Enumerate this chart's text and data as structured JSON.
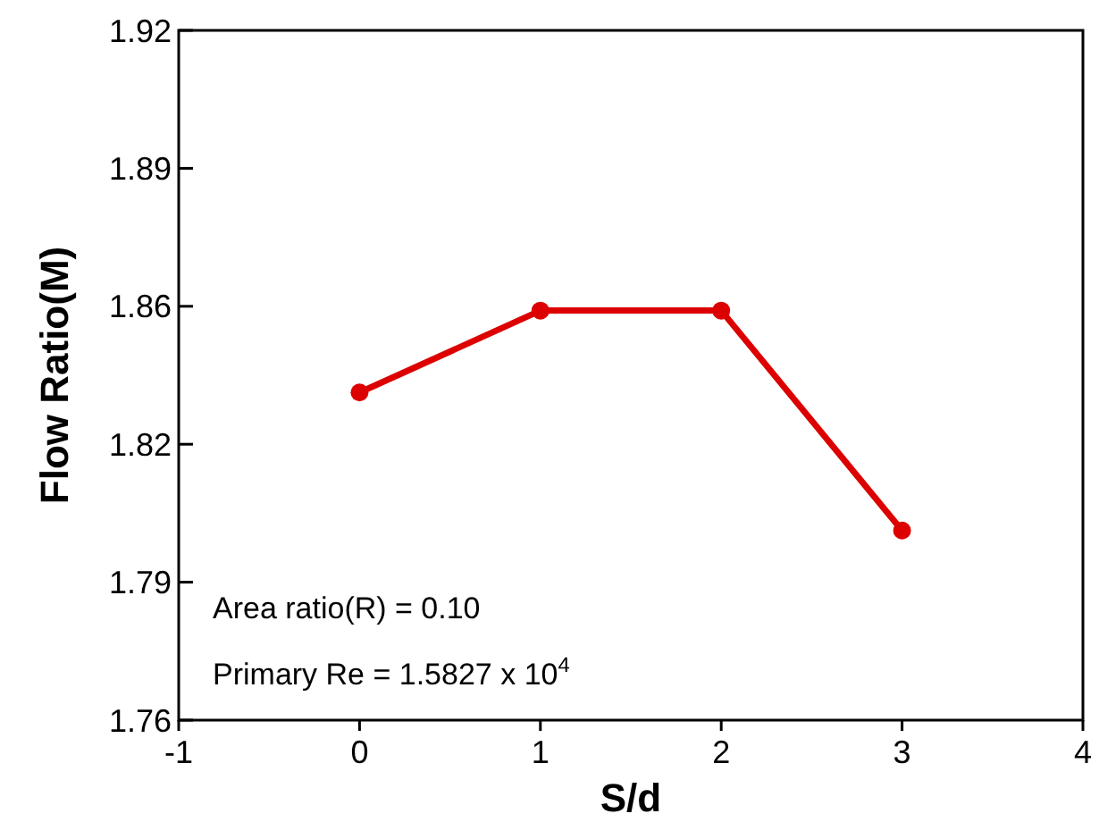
{
  "chart_data": {
    "type": "line",
    "xlabel": "S/d",
    "ylabel": "Flow Ratio(M)",
    "x": [
      0,
      1,
      2,
      3
    ],
    "series": [
      {
        "color": "#dd0000",
        "values": [
          1.836,
          1.855,
          1.855,
          1.804
        ]
      }
    ],
    "xlim": [
      -1,
      4
    ],
    "xticks": [
      -1,
      0,
      1,
      2,
      3,
      4
    ],
    "ylim": [
      1.76,
      1.92
    ],
    "yticks": [
      1.76,
      {
        "value": 1.792,
        "label": "1.79"
      },
      {
        "value": 1.824,
        "label": "1.82"
      },
      {
        "value": 1.856,
        "label": "1.86"
      },
      {
        "value": 1.888,
        "label": "1.89"
      },
      1.92
    ],
    "marker": "circle",
    "line_style": "solid",
    "grid": false,
    "annotations": [
      "Area ratio(R) = 0.10",
      "Primary Re = 1.5827 x 10$^{4}$"
    ]
  }
}
